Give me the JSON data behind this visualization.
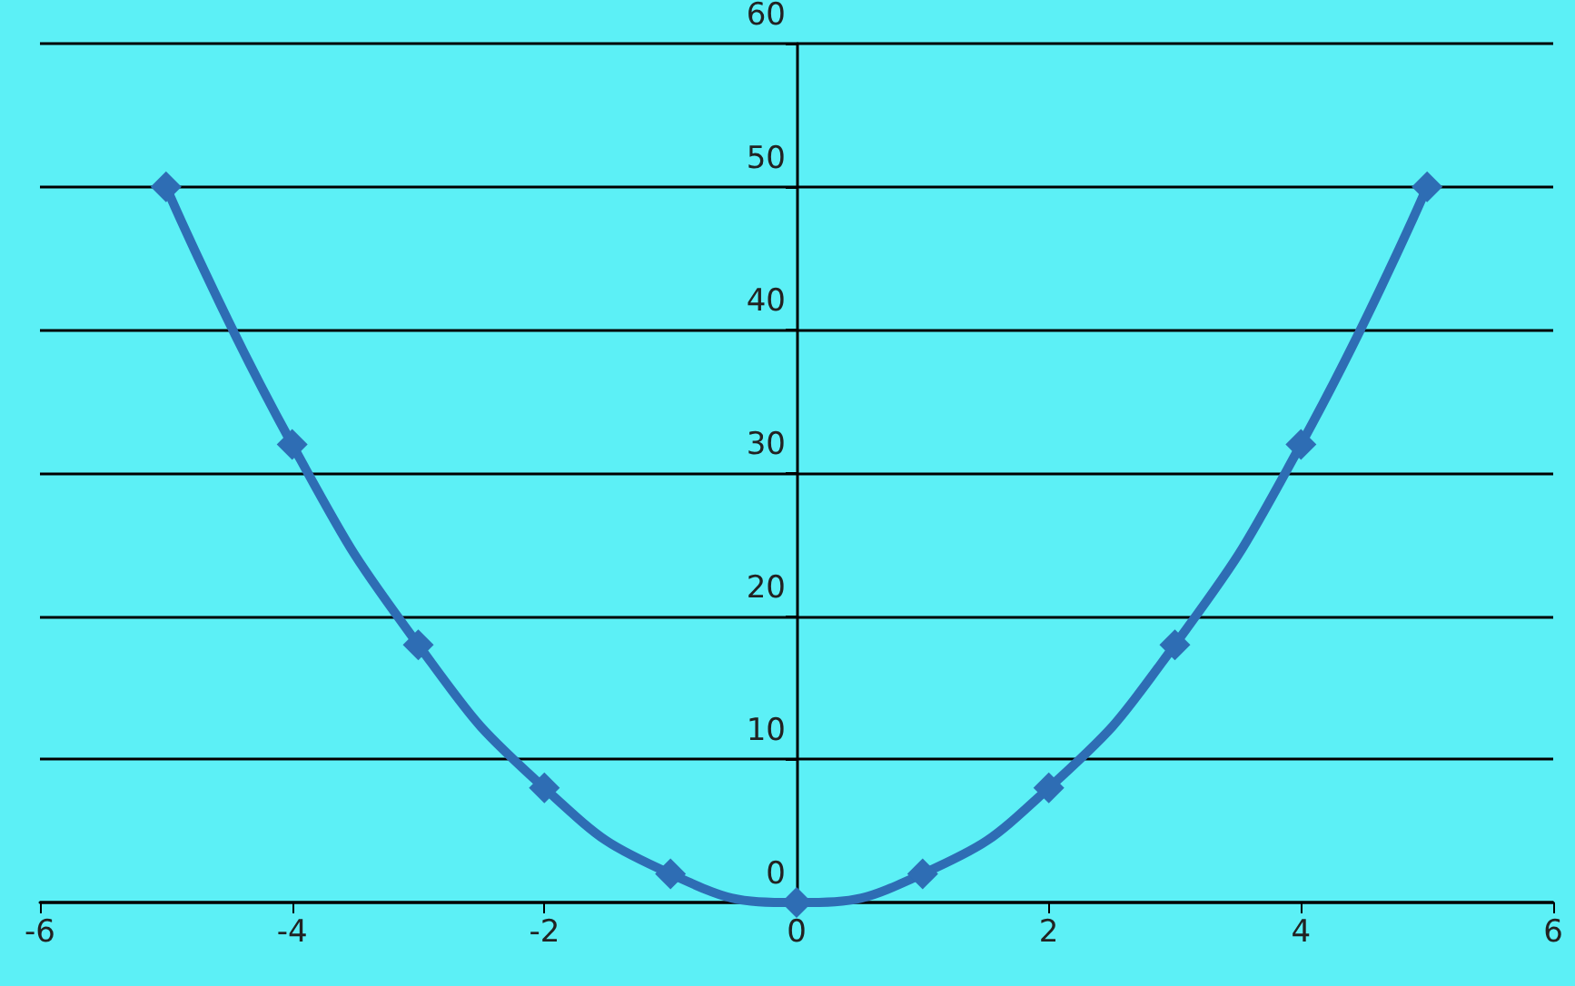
{
  "chart_data": {
    "type": "line",
    "x": [
      -5,
      -4,
      -3,
      -2,
      -1,
      0,
      1,
      2,
      3,
      4,
      5
    ],
    "series": [
      {
        "color": "#2e6db4",
        "values": [
          50,
          32,
          18,
          8,
          2,
          0,
          2,
          8,
          18,
          32,
          50
        ]
      }
    ],
    "xlim": [
      -6,
      6
    ],
    "xticks": [
      -6,
      -4,
      -2,
      0,
      2,
      4,
      6
    ],
    "ylim": [
      0,
      60
    ],
    "yticks": [
      0,
      10,
      20,
      30,
      40,
      50,
      60
    ],
    "grid": "y",
    "marker": "diamond",
    "line_style": "solid"
  }
}
